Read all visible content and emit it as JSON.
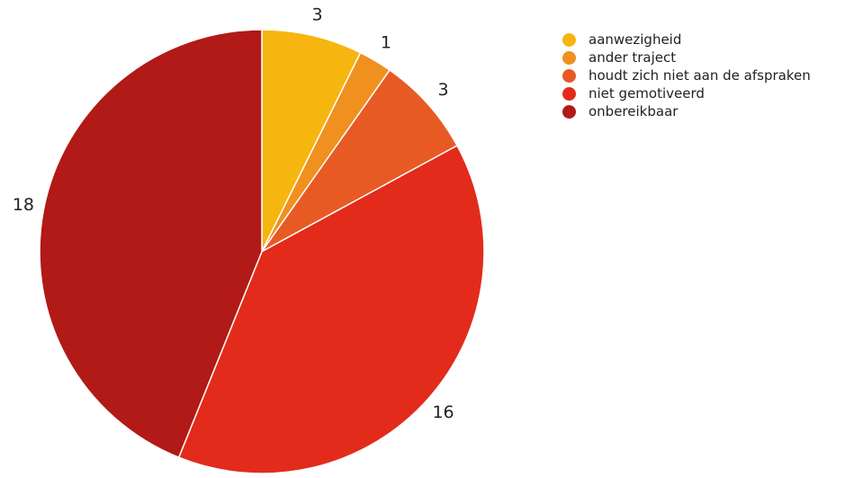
{
  "chart_data": {
    "type": "pie",
    "title": "",
    "categories": [
      "aanwezigheid",
      "ander traject",
      "houdt zich niet aan de afspraken",
      "niet gemotiveerd",
      "onbereikbaar"
    ],
    "values": [
      3,
      1,
      3,
      16,
      18
    ],
    "colors": [
      "#F6B60F",
      "#F0901E",
      "#E85A24",
      "#E32B1B",
      "#B11A16"
    ],
    "data_labels": [
      "3",
      "1",
      "3",
      "16",
      "18"
    ],
    "start_angle": "12 o'clock",
    "direction": "clockwise",
    "legend_position": "right"
  },
  "legend": {
    "items": [
      {
        "label": "aanwezigheid",
        "color": "#F6B60F"
      },
      {
        "label": "ander traject",
        "color": "#F0901E"
      },
      {
        "label": "houdt zich niet aan de afspraken",
        "color": "#E85A24"
      },
      {
        "label": "niet gemotiveerd",
        "color": "#E32B1B"
      },
      {
        "label": "onbereikbaar",
        "color": "#B11A16"
      }
    ]
  }
}
